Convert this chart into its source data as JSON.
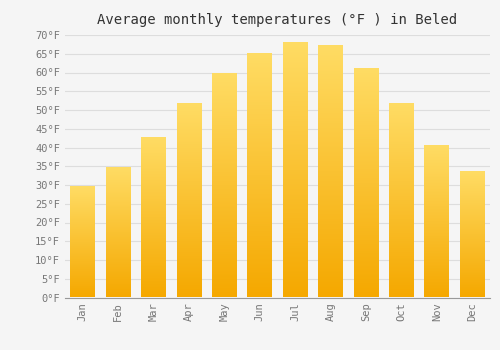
{
  "title": "Average monthly temperatures (°F ) in Beled",
  "months": [
    "Jan",
    "Feb",
    "Mar",
    "Apr",
    "May",
    "Jun",
    "Jul",
    "Aug",
    "Sep",
    "Oct",
    "Nov",
    "Dec"
  ],
  "values": [
    29.5,
    34.5,
    42.5,
    51.5,
    59.5,
    65.0,
    68.0,
    67.0,
    61.0,
    51.5,
    40.5,
    33.5
  ],
  "bar_color": "#FFC020",
  "bar_edge_color": "#E8A000",
  "background_color": "#f5f5f5",
  "plot_bg_color": "#f5f5f5",
  "grid_color": "#dddddd",
  "ylim": [
    0,
    70
  ],
  "ytick_step": 5,
  "title_fontsize": 10,
  "tick_fontsize": 7.5,
  "tick_font_family": "monospace"
}
